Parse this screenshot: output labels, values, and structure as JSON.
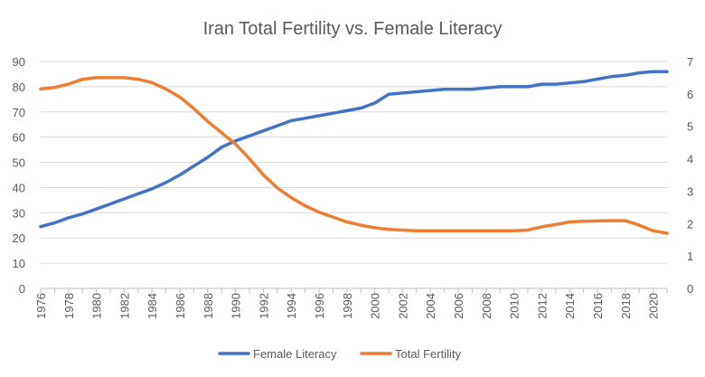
{
  "chart_data": {
    "type": "line",
    "title": "Iran Total Fertility vs. Female Literacy",
    "x": [
      1976,
      1977,
      1978,
      1979,
      1980,
      1981,
      1982,
      1983,
      1984,
      1985,
      1986,
      1987,
      1988,
      1989,
      1990,
      1991,
      1992,
      1993,
      1994,
      1995,
      1996,
      1997,
      1998,
      1999,
      2000,
      2001,
      2002,
      2003,
      2004,
      2005,
      2006,
      2007,
      2008,
      2009,
      2010,
      2011,
      2012,
      2013,
      2014,
      2015,
      2016,
      2017,
      2018,
      2019,
      2020,
      2021
    ],
    "x_ticks": [
      "1976",
      "1978",
      "1980",
      "1982",
      "1984",
      "1986",
      "1988",
      "1990",
      "1992",
      "1994",
      "1996",
      "1998",
      "2000",
      "2002",
      "2004",
      "2006",
      "2008",
      "2010",
      "2012",
      "2014",
      "2016",
      "2018",
      "2020"
    ],
    "y_left": {
      "min": 0,
      "max": 90,
      "step": 10,
      "ticks": [
        "0",
        "10",
        "20",
        "30",
        "40",
        "50",
        "60",
        "70",
        "80",
        "90"
      ]
    },
    "y_right": {
      "min": 0,
      "max": 7,
      "step": 1,
      "ticks": [
        "0",
        "1",
        "2",
        "3",
        "4",
        "5",
        "6",
        "7"
      ]
    },
    "grid": true,
    "legend_position": "bottom",
    "series": [
      {
        "name": "Female Literacy",
        "axis": "left",
        "color": "#4472C4",
        "values": [
          24.5,
          26,
          28,
          29.5,
          31.5,
          33.5,
          35.5,
          37.5,
          39.5,
          42,
          45,
          48.5,
          52,
          56,
          58.5,
          60.5,
          62.5,
          64.5,
          66.5,
          67.5,
          68.5,
          69.5,
          70.5,
          71.5,
          73.5,
          77,
          77.5,
          78,
          78.5,
          79,
          79,
          79,
          79.5,
          80,
          80,
          80,
          81,
          81,
          81.5,
          82,
          83,
          84,
          84.5,
          85.5,
          86,
          86
        ]
      },
      {
        "name": "Total Fertility",
        "axis": "right",
        "color": "#ED7D31",
        "values": [
          6.15,
          6.2,
          6.3,
          6.45,
          6.5,
          6.5,
          6.5,
          6.45,
          6.35,
          6.15,
          5.9,
          5.55,
          5.15,
          4.8,
          4.45,
          4.0,
          3.5,
          3.1,
          2.8,
          2.55,
          2.35,
          2.2,
          2.05,
          1.95,
          1.87,
          1.82,
          1.8,
          1.78,
          1.78,
          1.78,
          1.78,
          1.78,
          1.78,
          1.78,
          1.78,
          1.8,
          1.9,
          1.97,
          2.05,
          2.07,
          2.08,
          2.09,
          2.09,
          1.95,
          1.78,
          1.7
        ]
      }
    ]
  }
}
